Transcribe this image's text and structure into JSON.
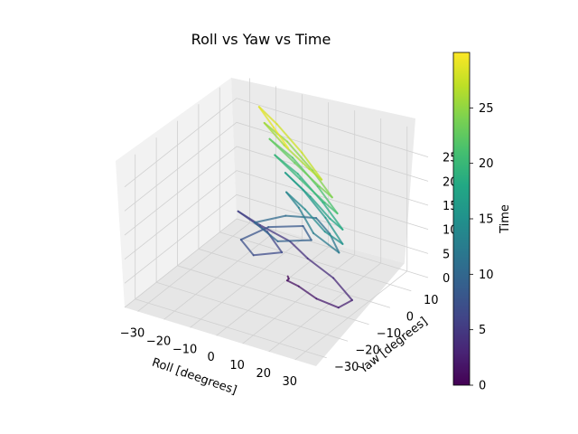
{
  "chart_data": {
    "type": "line3d",
    "title": "Roll vs Yaw vs Time",
    "xlabel": "Roll [deegrees]",
    "ylabel": "Yaw [degrees]",
    "zlabel": "",
    "xlim": [
      -35,
      38
    ],
    "ylim": [
      -35,
      18
    ],
    "zlim": [
      0,
      30
    ],
    "x_ticks": [
      "−30",
      "−20",
      "−10",
      "0",
      "10",
      "20",
      "30"
    ],
    "y_ticks": [
      "−30",
      "−20",
      "−10",
      "0",
      "10"
    ],
    "z_ticks": [
      "0",
      "5",
      "10",
      "15",
      "20",
      "25"
    ],
    "grid": true,
    "colorbar": {
      "label": "Time",
      "colormap": "viridis",
      "range": [
        0,
        30
      ],
      "ticks": [
        "0",
        "5",
        "10",
        "15",
        "20",
        "25"
      ]
    },
    "series": [
      {
        "values_description_free": true,
        "t": [
          0,
          0.5,
          1,
          1.5,
          2,
          2.5,
          3,
          3.5,
          4,
          4.5,
          5,
          5.5,
          6,
          6.5,
          7,
          7.5,
          8,
          8.5,
          9,
          9.5,
          10,
          10.5,
          11,
          11.5,
          12,
          12.5,
          13,
          13.5,
          14,
          14.5,
          15,
          15.5,
          16,
          16.5,
          17,
          17.5,
          18,
          18.5,
          19,
          19.5,
          20,
          20.5,
          21,
          21.5,
          22,
          22.5,
          23,
          23.5,
          24,
          24.5,
          25,
          25.5,
          26,
          26.5,
          27,
          27.5,
          28,
          28.5,
          29,
          29.5
        ],
        "roll": [
          -1,
          1,
          2,
          8,
          18,
          28,
          30,
          18,
          5,
          -5,
          -18,
          -28,
          -12,
          0,
          -6,
          -14,
          -10,
          0,
          8,
          0,
          -12,
          -5,
          5,
          15,
          25,
          12,
          0,
          -8,
          4,
          18,
          28,
          15,
          0,
          -10,
          6,
          20,
          28,
          14,
          -2,
          -14,
          2,
          18,
          26,
          12,
          -4,
          -16,
          0,
          16,
          24,
          10,
          -6,
          -18,
          -4,
          12,
          20,
          6,
          -10,
          -20,
          -8,
          4
        ],
        "yaw": [
          0,
          -2,
          -4,
          -6,
          -10,
          -12,
          -8,
          -2,
          2,
          6,
          8,
          10,
          4,
          -4,
          -10,
          -6,
          2,
          6,
          0,
          -6,
          -2,
          4,
          6,
          0,
          -8,
          -4,
          4,
          8,
          2,
          -6,
          -10,
          -2,
          6,
          10,
          2,
          -6,
          -10,
          -2,
          6,
          10,
          2,
          -6,
          -10,
          -2,
          6,
          10,
          2,
          -6,
          -10,
          -2,
          6,
          10,
          2,
          -6,
          -10,
          -2,
          6,
          10,
          2,
          -6
        ]
      }
    ]
  }
}
